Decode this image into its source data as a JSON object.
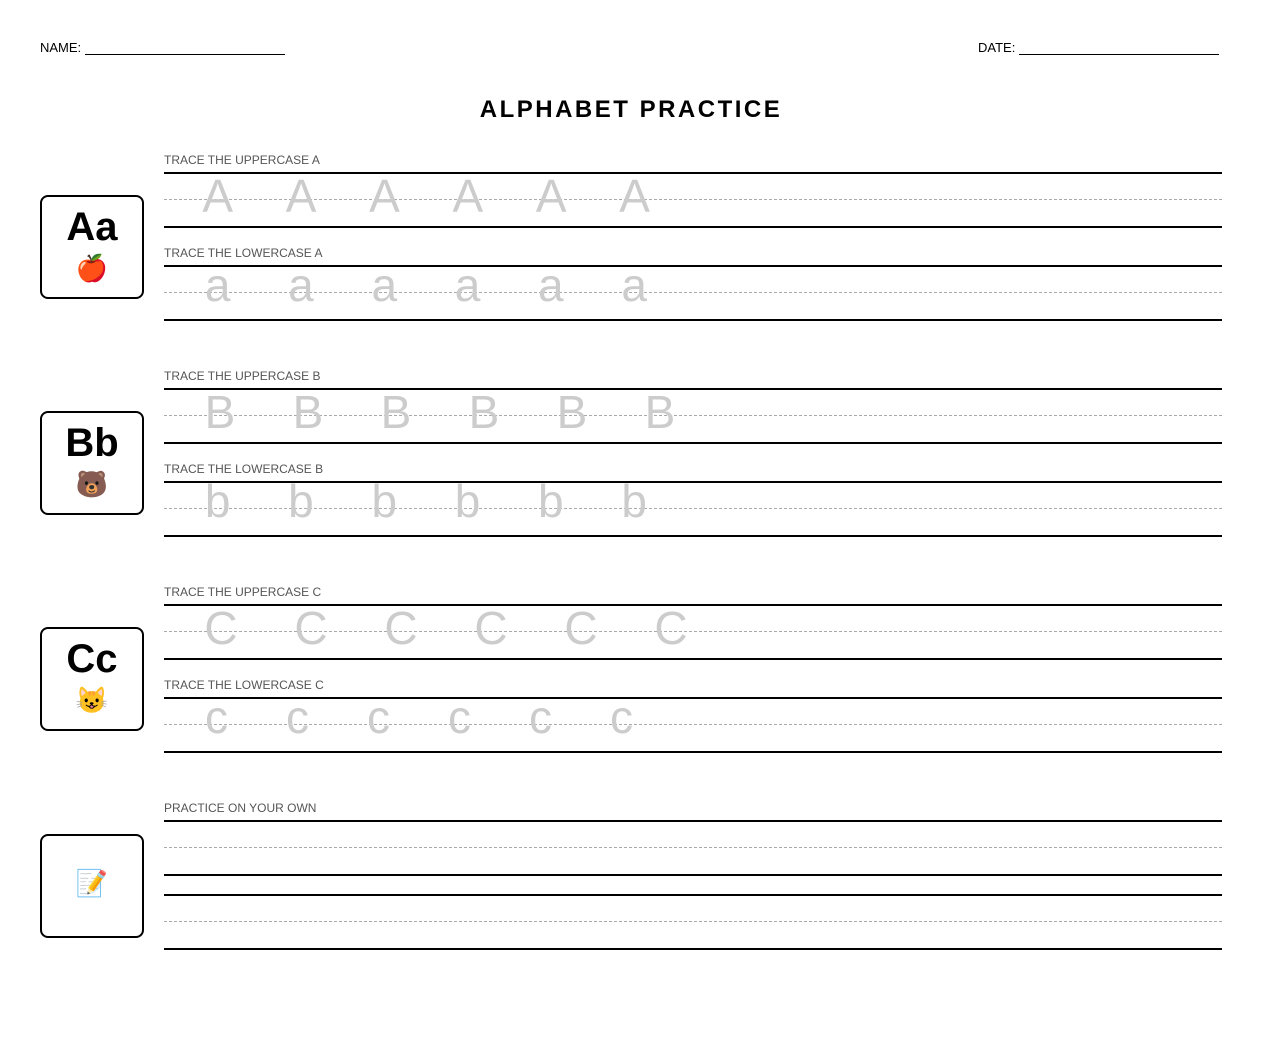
{
  "header": {
    "name_label": "NAME:",
    "date_label": "DATE:"
  },
  "title": "ALPHABET PRACTICE",
  "sections": [
    {
      "display": "Aa",
      "icon": "🍎",
      "icon_name": "apple-icon",
      "upper_label": "TRACE THE UPPERCASE A",
      "upper_letters": [
        "A",
        "A",
        "A",
        "A",
        "A",
        "A"
      ],
      "lower_label": "TRACE THE LOWERCASE A",
      "lower_letters": [
        "a",
        "a",
        "a",
        "a",
        "a",
        "a"
      ]
    },
    {
      "display": "Bb",
      "icon": "🐻",
      "icon_name": "bear-icon",
      "upper_label": "TRACE THE UPPERCASE B",
      "upper_letters": [
        "B",
        "B",
        "B",
        "B",
        "B",
        "B"
      ],
      "lower_label": "TRACE THE LOWERCASE B",
      "lower_letters": [
        "b",
        "b",
        "b",
        "b",
        "b",
        "b"
      ]
    },
    {
      "display": "Cc",
      "icon": "😺",
      "icon_name": "cat-icon",
      "upper_label": "TRACE THE UPPERCASE C",
      "upper_letters": [
        "C",
        "C",
        "C",
        "C",
        "C",
        "C"
      ],
      "lower_label": "TRACE THE LOWERCASE C",
      "lower_letters": [
        "c",
        "c",
        "c",
        "c",
        "c",
        "c"
      ]
    }
  ],
  "practice": {
    "label": "PRACTICE ON YOUR OWN",
    "icon": "📝",
    "icon_name": "memo-pencil-icon"
  },
  "colors": {
    "trace": "#cccccc",
    "guide": "#aaaaaa",
    "label": "#555555"
  }
}
